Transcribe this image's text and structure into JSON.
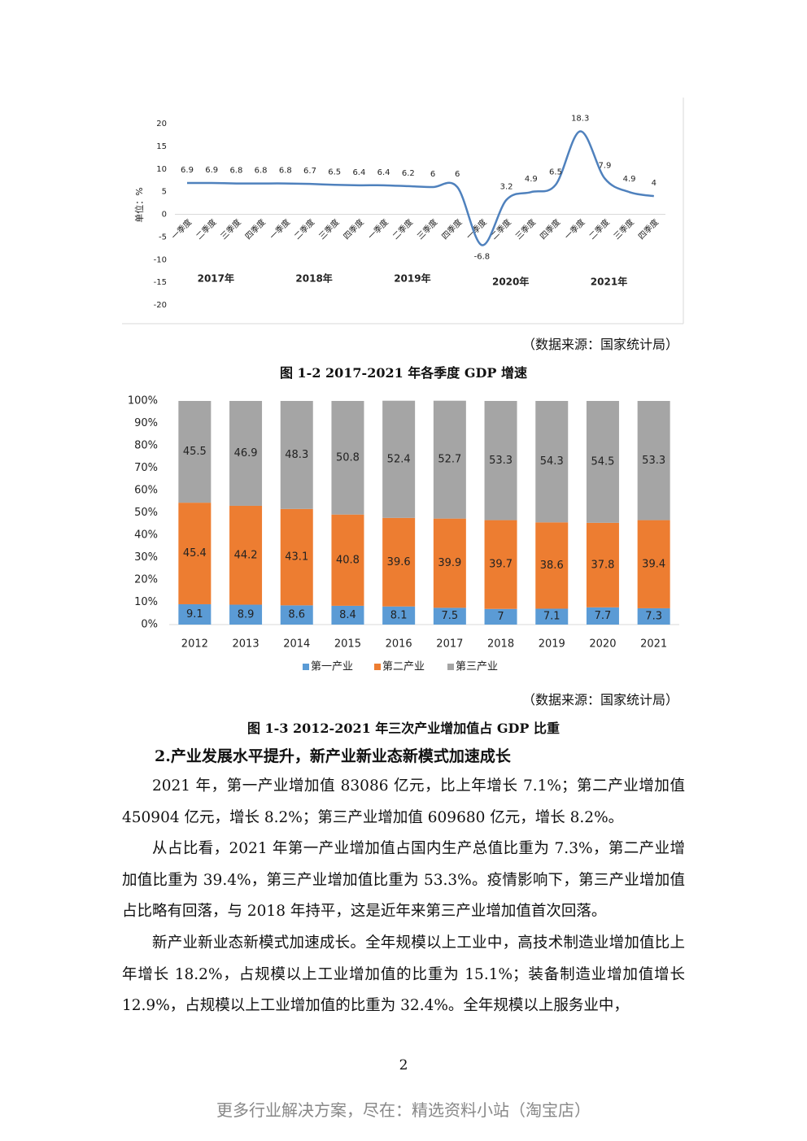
{
  "chart_data": [
    {
      "type": "line",
      "title": "图 1-2 2017-2021 年各季度 GDP 增速",
      "source": "（数据来源：国家统计局）",
      "y_label": "单位：%",
      "categories": [
        "一季度",
        "二季度",
        "三季度",
        "四季度",
        "一季度",
        "二季度",
        "三季度",
        "四季度",
        "一季度",
        "二季度",
        "三季度",
        "四季度",
        "一季度",
        "二季度",
        "三季度",
        "四季度",
        "一季度",
        "二季度",
        "三季度",
        "四季度"
      ],
      "year_labels": [
        "2017年",
        "2018年",
        "2019年",
        "2020年",
        "2021年"
      ],
      "series": [
        {
          "name": "GDP增速",
          "color": "#4f81bd",
          "values": [
            6.9,
            6.9,
            6.8,
            6.8,
            6.8,
            6.7,
            6.5,
            6.4,
            6.4,
            6.2,
            6,
            6,
            -6.8,
            3.2,
            4.9,
            6.5,
            18.3,
            7.9,
            4.9,
            4
          ]
        }
      ],
      "ylim": [
        -20,
        20
      ],
      "yticks": [
        20,
        15,
        10,
        5,
        0,
        -5,
        -10,
        -15,
        -20
      ]
    },
    {
      "type": "bar",
      "stacked": true,
      "title": "图 1-3 2012-2021 年三次产业增加值占 GDP 比重",
      "source": "（数据来源：国家统计局）",
      "categories": [
        "2012",
        "2013",
        "2014",
        "2015",
        "2016",
        "2017",
        "2018",
        "2019",
        "2020",
        "2021"
      ],
      "series": [
        {
          "name": "第一产业",
          "color": "#5b9bd5",
          "values": [
            9.1,
            8.9,
            8.6,
            8.4,
            8.1,
            7.5,
            7,
            7.1,
            7.7,
            7.3
          ]
        },
        {
          "name": "第二产业",
          "color": "#ed7d31",
          "values": [
            45.4,
            44.2,
            43.1,
            40.8,
            39.6,
            39.9,
            39.7,
            38.6,
            37.8,
            39.4
          ]
        },
        {
          "name": "第三产业",
          "color": "#a5a5a5",
          "values": [
            45.5,
            46.9,
            48.3,
            50.8,
            52.4,
            52.7,
            53.3,
            54.3,
            54.5,
            53.3
          ]
        }
      ],
      "ylim": [
        0,
        100
      ],
      "yticks": [
        {
          "value": 0,
          "label": "0%"
        },
        {
          "value": 10,
          "label": "10%"
        },
        {
          "value": 20,
          "label": "20%"
        },
        {
          "value": 30,
          "label": "30%"
        },
        {
          "value": 40,
          "label": "40%"
        },
        {
          "value": 50,
          "label": "50%"
        },
        {
          "value": 60,
          "label": "60%"
        },
        {
          "value": 70,
          "label": "70%"
        },
        {
          "value": 80,
          "label": "80%"
        },
        {
          "value": 90,
          "label": "90%"
        },
        {
          "value": 100,
          "label": "100%"
        }
      ],
      "legend": "bottom"
    }
  ],
  "heading": "2.产业发展水平提升，新产业新业态新模式加速成长",
  "paragraphs": [
    "2021 年，第一产业增加值 83086 亿元，比上年增长 7.1%；第二产业增加值 450904 亿元，增长 8.2%；第三产业增加值 609680 亿元，增长 8.2%。",
    "从占比看，2021 年第一产业增加值占国内生产总值比重为 7.3%，第二产业增加值比重为 39.4%，第三产业增加值比重为 53.3%。疫情影响下，第三产业增加值占比略有回落，与 2018 年持平，这是近年来第三产业增加值首次回落。",
    "新产业新业态新模式加速成长。全年规模以上工业中，高技术制造业增加值比上年增长 18.2%，占规模以上工业增加值的比重为 15.1%；装备制造业增加值增长 12.9%，占规模以上工业增加值的比重为 32.4%。全年规模以上服务业中，"
  ],
  "page_number": "2",
  "footer": "更多行业解决方案，尽在：精选资料小站（淘宝店）"
}
